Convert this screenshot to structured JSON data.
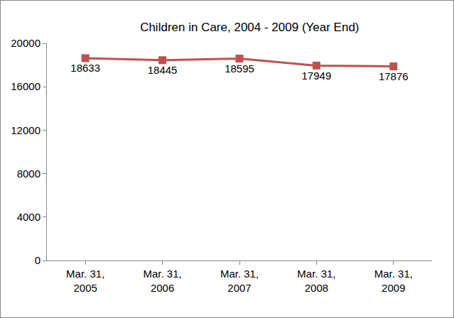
{
  "chart_data": {
    "type": "line",
    "title": "Children in Care, 2004 - 2009 (Year End)",
    "categories": [
      "Mar. 31, 2005",
      "Mar. 31, 2006",
      "Mar. 31, 2007",
      "Mar. 31, 2008",
      "Mar. 31, 2009"
    ],
    "values": [
      18633,
      18445,
      18595,
      17949,
      17876
    ],
    "color": "#c0504d",
    "marker": "square",
    "data_labels": true,
    "ylim": [
      0,
      20000
    ],
    "yticks": [
      0,
      4000,
      8000,
      12000,
      16000,
      20000
    ],
    "grid": false
  }
}
